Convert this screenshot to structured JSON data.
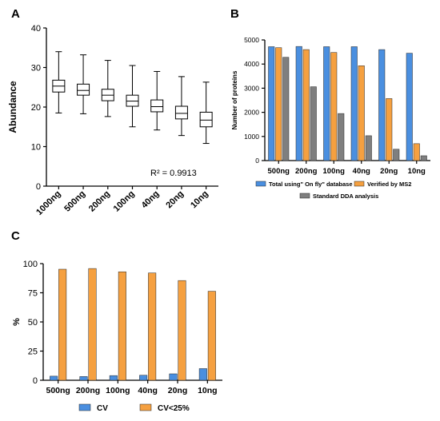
{
  "panels": {
    "a": "A",
    "b": "B",
    "c": "C"
  },
  "chart_data": [
    {
      "type": "box",
      "ylabel": "Abundance",
      "ylim": [
        0,
        40
      ],
      "yticks": [
        0,
        10,
        20,
        30,
        40
      ],
      "categories": [
        "1000ng",
        "500ng",
        "200ng",
        "100ng",
        "40ng",
        "20ng",
        "10ng"
      ],
      "boxes": [
        {
          "min": 18.5,
          "q1": 23.8,
          "median": 25.3,
          "q3": 26.8,
          "max": 34.0
        },
        {
          "min": 18.3,
          "q1": 23.0,
          "median": 24.2,
          "q3": 25.8,
          "max": 33.2
        },
        {
          "min": 17.6,
          "q1": 21.6,
          "median": 23.0,
          "q3": 24.5,
          "max": 31.8
        },
        {
          "min": 15.0,
          "q1": 20.2,
          "median": 21.5,
          "q3": 23.0,
          "max": 30.5
        },
        {
          "min": 14.2,
          "q1": 18.8,
          "median": 20.1,
          "q3": 21.8,
          "max": 29.0
        },
        {
          "min": 12.8,
          "q1": 17.0,
          "median": 18.4,
          "q3": 20.2,
          "max": 27.7
        },
        {
          "min": 10.8,
          "q1": 15.0,
          "median": 16.7,
          "q3": 18.7,
          "max": 26.3
        }
      ],
      "annotation": "R² = 0.9913"
    },
    {
      "type": "bar",
      "ylabel": "Number of proteins",
      "ylim": [
        0,
        5000
      ],
      "yticks": [
        0,
        1000,
        2000,
        3000,
        4000,
        5000
      ],
      "categories": [
        "500ng",
        "200ng",
        "100ng",
        "40ng",
        "20ng",
        "10ng"
      ],
      "series": [
        {
          "name": "Total using\" On fly\" database",
          "color": "#4a8fe0",
          "values": [
            4720,
            4730,
            4720,
            4720,
            4600,
            4450
          ]
        },
        {
          "name": "Verified by MS2",
          "color": "#f5a040",
          "values": [
            4680,
            4600,
            4480,
            3930,
            2570,
            700
          ]
        },
        {
          "name": "Standard DDA analysis",
          "color": "#7f7f7f",
          "values": [
            4280,
            3060,
            1950,
            1030,
            470,
            200
          ]
        }
      ]
    },
    {
      "type": "bar",
      "ylabel": "%",
      "ylim": [
        0,
        100
      ],
      "yticks": [
        0,
        25,
        50,
        75,
        100
      ],
      "categories": [
        "500ng",
        "200ng",
        "100ng",
        "40ng",
        "20ng",
        "10ng"
      ],
      "series": [
        {
          "name": "CV",
          "color": "#4a8fe0",
          "values": [
            3.5,
            3.2,
            4.0,
            4.3,
            5.5,
            10.0
          ]
        },
        {
          "name": "CV<25%",
          "color": "#f5a040",
          "values": [
            95.2,
            95.8,
            93.0,
            92.0,
            85.5,
            76.3
          ]
        }
      ]
    }
  ]
}
